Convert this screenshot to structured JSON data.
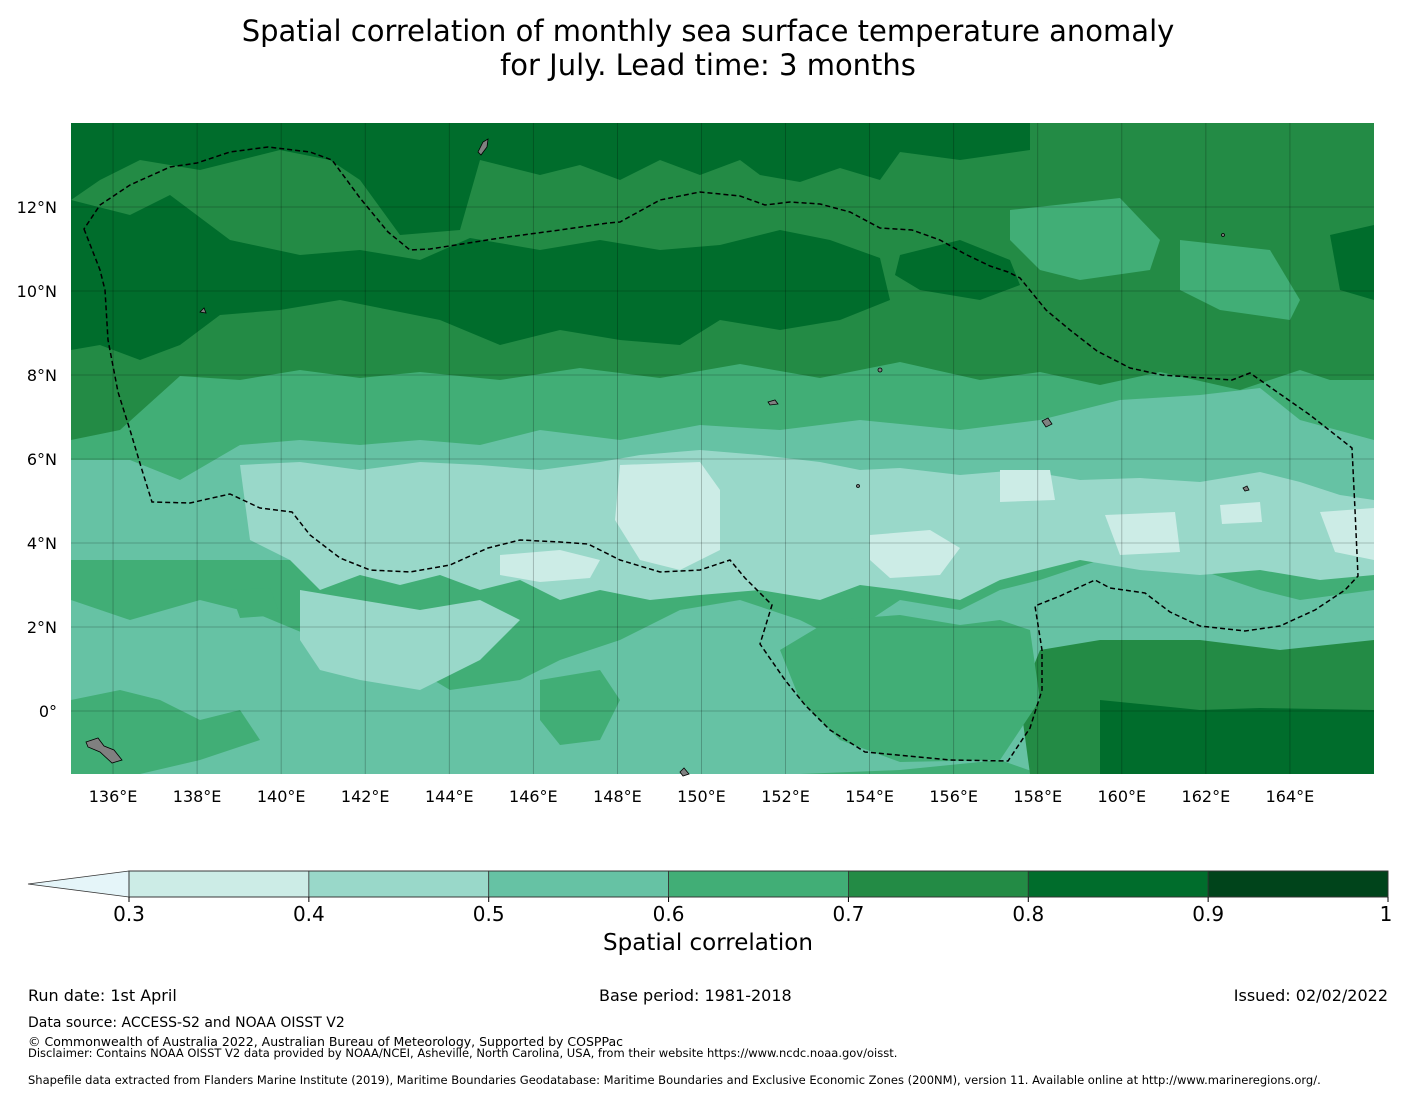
{
  "title": {
    "line1": "Spatial correlation of monthly sea surface temperature anomaly",
    "line2": "for July. Lead time: 3 months"
  },
  "map": {
    "lon_range": [
      135,
      166
    ],
    "lat_range": [
      -1.5,
      14
    ],
    "lon_ticks": [
      "136°E",
      "138°E",
      "140°E",
      "142°E",
      "144°E",
      "146°E",
      "148°E",
      "150°E",
      "152°E",
      "154°E",
      "156°E",
      "158°E",
      "160°E",
      "162°E",
      "164°E"
    ],
    "lat_ticks": [
      "12°N",
      "10°N",
      "8°N",
      "6°N",
      "4°N",
      "2°N",
      "0°"
    ],
    "boundary": "EEZ dashed outline",
    "land_color": "#808080"
  },
  "colorbar": {
    "label": "Spatial correlation",
    "extend": "min",
    "bounds": [
      0.3,
      0.4,
      0.5,
      0.6,
      0.7,
      0.8,
      0.9,
      1
    ],
    "tick_labels": [
      "0.3",
      "0.4",
      "0.5",
      "0.6",
      "0.7",
      "0.8",
      "0.9",
      "1"
    ],
    "under_color": "#e5f5f9",
    "colors": [
      "#ccece6",
      "#99d8c9",
      "#66c2a4",
      "#41ae76",
      "#238b45",
      "#006d2c",
      "#00441b"
    ]
  },
  "footer": {
    "run_date": "Run date: 1st April",
    "base_period": "Base period: 1981-2018",
    "issued": "Issued: 02/02/2022",
    "data_source": "Data source: ACCESS-S2 and NOAA OISST V2",
    "copyright": "© Commonwealth of Australia 2022, Australian Bureau of Meteorology, Supported by COSPPac",
    "disclaimer": "Disclaimer: Contains NOAA OISST V2 data provided by NOAA/NCEI, Asheville, North Carolina, USA, from their website https://www.ncdc.noaa.gov/oisst.",
    "shapefile": "Shapefile data extracted from Flanders Marine Institute (2019), Maritime Boundaries Geodatabase: Maritime Boundaries and Exclusive Economic Zones (200NM), version 11. Available online at http://www.marineregions.org/."
  }
}
